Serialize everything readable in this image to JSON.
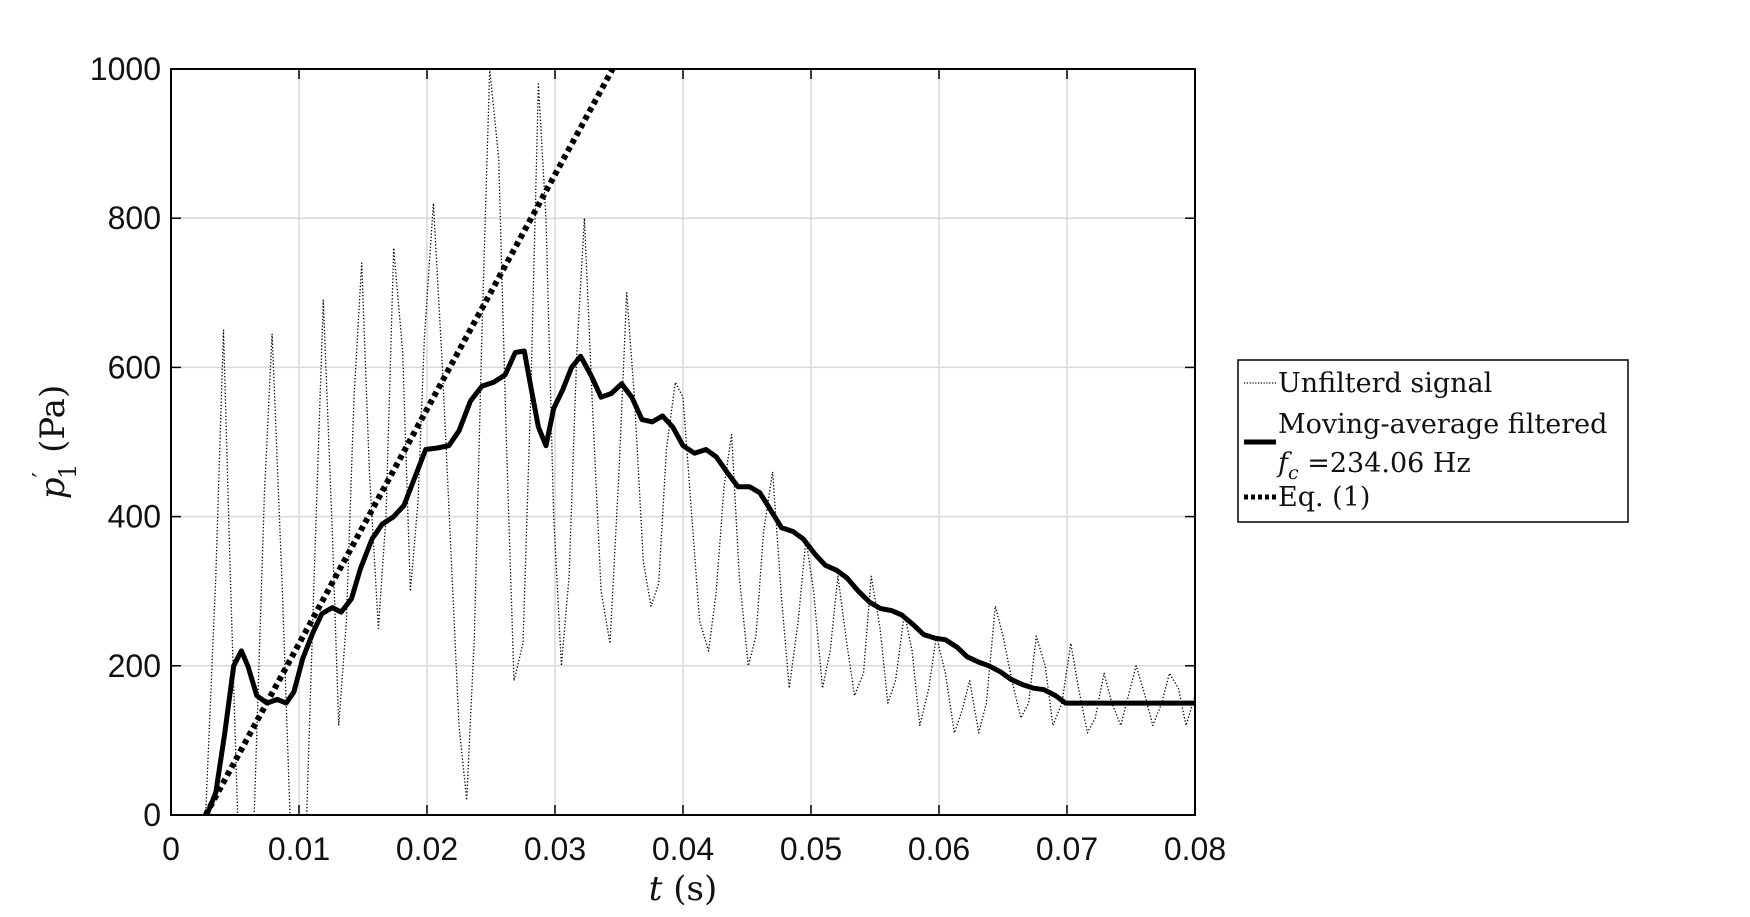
{
  "chart_data": {
    "type": "line",
    "xlabel": "t (s)",
    "ylabel": "p′1 (Pa)",
    "xlim": [
      0,
      0.08
    ],
    "ylim": [
      0,
      1000
    ],
    "xticks": [
      0,
      0.01,
      0.02,
      0.03,
      0.04,
      0.05,
      0.06,
      0.07,
      0.08
    ],
    "xtick_labels": [
      "0",
      "0.01",
      "0.02",
      "0.03",
      "0.04",
      "0.05",
      "0.06",
      "0.07",
      "0.08"
    ],
    "yticks": [
      0,
      200,
      400,
      600,
      800,
      1000
    ],
    "ytick_labels": [
      "0",
      "200",
      "400",
      "600",
      "800",
      "1000"
    ],
    "grid": true,
    "legend_position": "right-outside",
    "series": [
      {
        "name": "Unfilterd signal",
        "style": "dotted-thin",
        "color": "#000000",
        "x": [
          0.0027,
          0.0035,
          0.0041,
          0.0046,
          0.0052,
          0.0058,
          0.0065,
          0.0073,
          0.0079,
          0.0087,
          0.0093,
          0.0099,
          0.0106,
          0.0112,
          0.0119,
          0.0126,
          0.0131,
          0.0137,
          0.0143,
          0.0149,
          0.0155,
          0.0162,
          0.0168,
          0.0174,
          0.0181,
          0.0187,
          0.0193,
          0.0198,
          0.0205,
          0.0212,
          0.0218,
          0.0225,
          0.0231,
          0.0237,
          0.0243,
          0.0249,
          0.0256,
          0.0262,
          0.0268,
          0.0275,
          0.0281,
          0.0287,
          0.0293,
          0.0299,
          0.0305,
          0.0311,
          0.0317,
          0.0323,
          0.033,
          0.0336,
          0.0343,
          0.035,
          0.0356,
          0.0362,
          0.0369,
          0.0375,
          0.0381,
          0.0387,
          0.0394,
          0.04,
          0.0406,
          0.0413,
          0.042,
          0.0426,
          0.0432,
          0.0438,
          0.0444,
          0.0451,
          0.0457,
          0.0463,
          0.047,
          0.0477,
          0.0483,
          0.049,
          0.0496,
          0.0502,
          0.0509,
          0.0515,
          0.0521,
          0.0528,
          0.0534,
          0.0541,
          0.0547,
          0.0554,
          0.056,
          0.0566,
          0.0573,
          0.0579,
          0.0585,
          0.0592,
          0.0598,
          0.0605,
          0.0612,
          0.0618,
          0.0624,
          0.0631,
          0.0637,
          0.0644,
          0.065,
          0.0657,
          0.0664,
          0.067,
          0.0676,
          0.0683,
          0.0689,
          0.0696,
          0.0703,
          0.0709,
          0.0716,
          0.0722,
          0.0729,
          0.0735,
          0.0742,
          0.0748,
          0.0754,
          0.0761,
          0.0767,
          0.0774,
          0.078,
          0.0787,
          0.0793,
          0.08
        ],
        "y": [
          0,
          320,
          650,
          340,
          0,
          0,
          0,
          430,
          645,
          300,
          0,
          0,
          0,
          330,
          690,
          380,
          120,
          260,
          560,
          740,
          460,
          250,
          400,
          760,
          620,
          300,
          420,
          640,
          820,
          600,
          380,
          120,
          20,
          240,
          650,
          1000,
          880,
          500,
          180,
          230,
          560,
          980,
          800,
          400,
          200,
          320,
          620,
          800,
          520,
          300,
          230,
          460,
          700,
          560,
          340,
          280,
          310,
          490,
          580,
          560,
          420,
          260,
          220,
          300,
          440,
          510,
          320,
          200,
          240,
          380,
          460,
          290,
          170,
          260,
          370,
          300,
          170,
          220,
          320,
          230,
          160,
          190,
          320,
          250,
          150,
          180,
          270,
          220,
          120,
          170,
          240,
          190,
          110,
          140,
          180,
          110,
          150,
          280,
          240,
          180,
          130,
          150,
          240,
          200,
          120,
          150,
          230,
          170,
          110,
          130,
          190,
          150,
          120,
          160,
          200,
          160,
          120,
          150,
          190,
          170,
          120,
          160
        ]
      },
      {
        "name": "Moving-average filtered",
        "name_line2": "f_c =234.06 Hz",
        "style": "solid-thick",
        "color": "#000000",
        "x": [
          0.0028,
          0.0035,
          0.0042,
          0.0049,
          0.0055,
          0.006,
          0.0067,
          0.0075,
          0.0083,
          0.009,
          0.0096,
          0.0103,
          0.0111,
          0.0118,
          0.0126,
          0.0133,
          0.0141,
          0.0148,
          0.0157,
          0.0165,
          0.0174,
          0.0182,
          0.0191,
          0.0199,
          0.0208,
          0.0217,
          0.0225,
          0.0234,
          0.0243,
          0.0252,
          0.0261,
          0.0269,
          0.0276,
          0.0281,
          0.0287,
          0.0293,
          0.0299,
          0.0306,
          0.0313,
          0.032,
          0.0328,
          0.0336,
          0.0344,
          0.0352,
          0.036,
          0.0368,
          0.0376,
          0.0384,
          0.0392,
          0.04,
          0.0409,
          0.0418,
          0.0426,
          0.0435,
          0.0443,
          0.0452,
          0.046,
          0.0468,
          0.0477,
          0.0486,
          0.0494,
          0.0503,
          0.0511,
          0.052,
          0.0528,
          0.0537,
          0.0546,
          0.0554,
          0.0563,
          0.0571,
          0.058,
          0.0588,
          0.0597,
          0.0605,
          0.0614,
          0.0622,
          0.0631,
          0.0639,
          0.0648,
          0.0656,
          0.0665,
          0.0674,
          0.0682,
          0.0691,
          0.0699,
          0.0708,
          0.0716,
          0.0725,
          0.0733,
          0.0742,
          0.075,
          0.0759,
          0.0767,
          0.0776,
          0.0784,
          0.0793,
          0.08
        ],
        "y": [
          0,
          30,
          110,
          200,
          220,
          200,
          160,
          150,
          155,
          150,
          165,
          210,
          245,
          270,
          278,
          272,
          290,
          330,
          370,
          390,
          400,
          415,
          455,
          490,
          492,
          495,
          515,
          555,
          575,
          580,
          590,
          620,
          622,
          575,
          520,
          495,
          545,
          570,
          600,
          615,
          590,
          560,
          565,
          578,
          560,
          530,
          527,
          535,
          520,
          495,
          485,
          490,
          480,
          458,
          440,
          440,
          432,
          410,
          385,
          380,
          370,
          350,
          335,
          328,
          318,
          300,
          285,
          277,
          274,
          268,
          255,
          242,
          237,
          235,
          225,
          212,
          205,
          200,
          192,
          182,
          175,
          170,
          168,
          160,
          150,
          150,
          150,
          150,
          150,
          150,
          150,
          150,
          150,
          150,
          150,
          150,
          150
        ],
        "note_unused": ""
      },
      {
        "name": "Eq. (1)",
        "style": "dotted-thick",
        "color": "#000000",
        "x": [
          0.0027,
          0.0345
        ],
        "y": [
          0,
          1000
        ]
      }
    ]
  },
  "legend": {
    "entries": [
      "Unfilterd signal",
      "Moving-average filtered",
      "f_c =234.06 Hz",
      "Eq. (1)"
    ]
  }
}
